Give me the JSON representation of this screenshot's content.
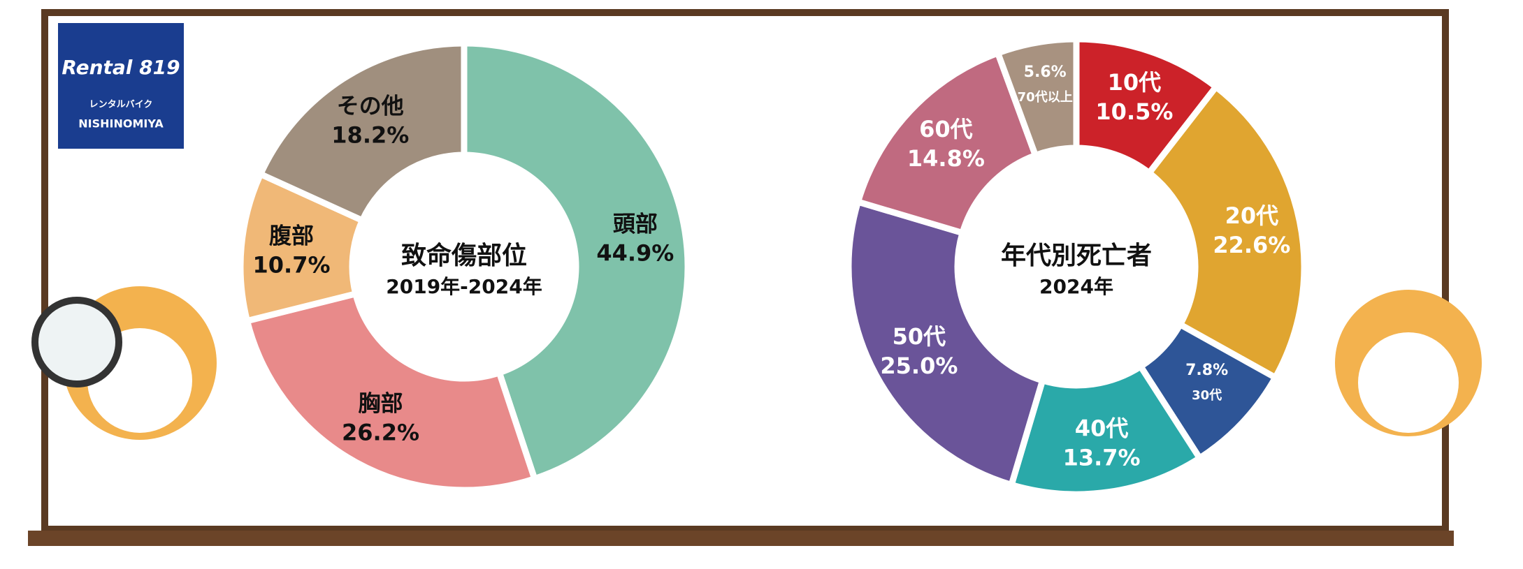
{
  "logo": {
    "brand": "Rental 819",
    "kana": "レンタルバイク",
    "place": "NISHINOMIYA"
  },
  "chart_data": [
    {
      "type": "pie",
      "title": "致命傷部位",
      "subtitle": "2019年-2024年",
      "categories": [
        "頭部",
        "胸部",
        "腹部",
        "その他"
      ],
      "values": [
        44.9,
        26.2,
        10.7,
        18.2
      ],
      "value_labels": [
        "44.9%",
        "26.2%",
        "10.7%",
        "18.2%"
      ],
      "colors": [
        "#7fc2aa",
        "#e88a8a",
        "#f0b877",
        "#a08f7e"
      ],
      "label_color": "#111111"
    },
    {
      "type": "pie",
      "title": "年代別死亡者",
      "subtitle": "2024年",
      "categories": [
        "10代",
        "20代",
        "30代",
        "40代",
        "50代",
        "60代",
        "70代以上"
      ],
      "values": [
        10.5,
        22.6,
        7.8,
        13.7,
        25.0,
        14.8,
        5.6
      ],
      "value_labels": [
        "10.5%",
        "22.6%",
        "7.8%",
        "13.7%",
        "25.0%",
        "14.8%",
        "5.6%"
      ],
      "colors": [
        "#cc2229",
        "#e0a530",
        "#2e5597",
        "#2aa9a9",
        "#6a5499",
        "#c06a80",
        "#a89280"
      ],
      "label_color": "#ffffff"
    }
  ]
}
